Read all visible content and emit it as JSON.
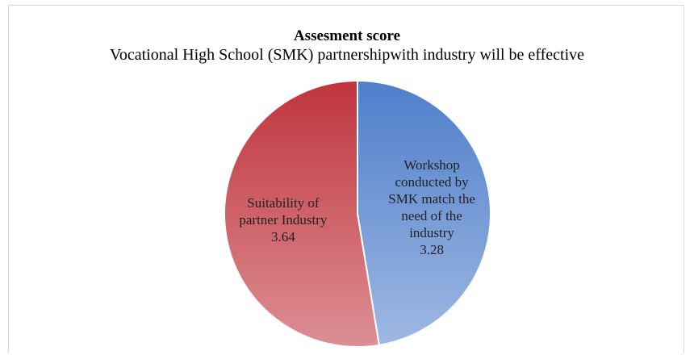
{
  "chart_data": {
    "type": "pie",
    "title": "Assesment score",
    "subtitle": "Vocational High School (SMK) partnershipwith industry will be effective",
    "categories": [
      "Workshop conducted by SMK match the need of the industry",
      "Suitability of partner Industry"
    ],
    "values": [
      3.28,
      3.64
    ],
    "colors": [
      "#4f7ecb",
      "#c0343c"
    ]
  }
}
